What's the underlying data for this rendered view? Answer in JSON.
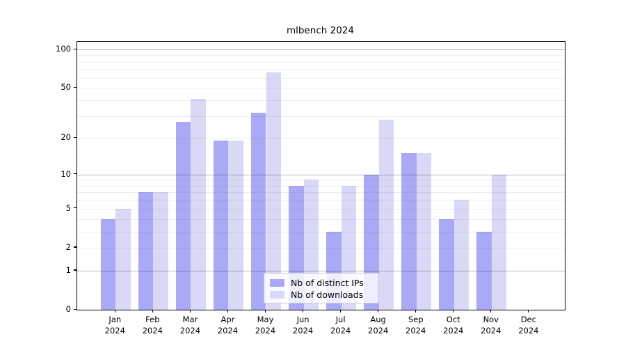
{
  "title": "mlbench 2024",
  "chart_data": {
    "type": "bar",
    "title": "mlbench 2024",
    "x_categories": [
      "Jan",
      "Feb",
      "Mar",
      "Apr",
      "May",
      "Jun",
      "Jul",
      "Aug",
      "Sep",
      "Oct",
      "Nov",
      "Dec"
    ],
    "x_year": "2024",
    "series": [
      {
        "name": "Nb of distinct IPs",
        "color": "#a9a9f7",
        "values": [
          4,
          7,
          27,
          19,
          32,
          8,
          3,
          10,
          15,
          4,
          3,
          0
        ]
      },
      {
        "name": "Nb of downloads",
        "color": "#d9d9f7",
        "values": [
          5,
          7,
          41,
          19,
          66,
          9,
          8,
          28,
          15,
          6,
          10,
          0
        ]
      }
    ],
    "y_scale": "log1p",
    "y_tick_labels": [
      "0",
      "1",
      "2",
      "5",
      "10",
      "20",
      "50",
      "100"
    ],
    "y_ticks": [
      0,
      1,
      2,
      5,
      10,
      20,
      50,
      100
    ],
    "y_minor_gridlines": [
      2,
      3,
      4,
      5,
      6,
      7,
      8,
      9,
      20,
      30,
      40,
      50,
      60,
      70,
      80,
      90
    ],
    "y_major_gridlines": [
      1,
      10,
      100
    ],
    "ylim": [
      0,
      115
    ],
    "xlabel": "",
    "ylabel": "",
    "grid": "horizontal",
    "legend_position": "lower center"
  },
  "colors": {
    "bar_dark": "#a9a9f7",
    "bar_light": "#d9d9f7",
    "grid_major": "#b8b8b8",
    "grid_minor": "#ededed"
  }
}
